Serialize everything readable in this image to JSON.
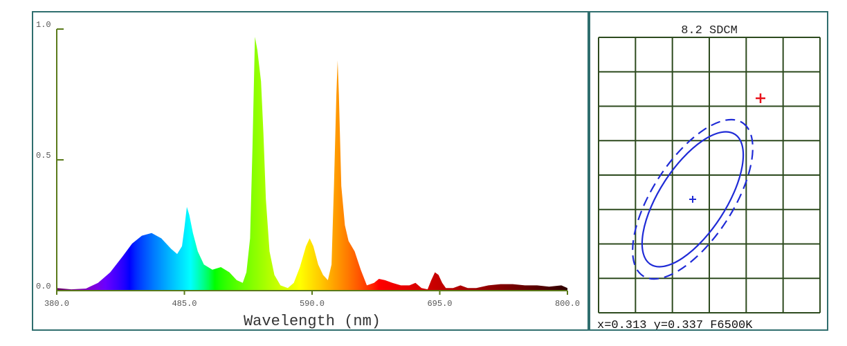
{
  "chart_data": [
    {
      "type": "area",
      "xlabel": "Wavelength (nm)",
      "ylabel": "",
      "xlim": [
        380,
        800
      ],
      "ylim": [
        0,
        1
      ],
      "x_ticks": [
        "380.0",
        "485.0",
        "590.0",
        "695.0",
        "800.0"
      ],
      "y_ticks": [
        "0.0",
        "0.5",
        "1.0"
      ],
      "colored_by_wavelength": true,
      "points": [
        [
          380,
          0.01
        ],
        [
          392,
          0.005
        ],
        [
          404,
          0.008
        ],
        [
          414,
          0.03
        ],
        [
          424,
          0.07
        ],
        [
          434,
          0.13
        ],
        [
          442,
          0.18
        ],
        [
          450,
          0.21
        ],
        [
          458,
          0.22
        ],
        [
          466,
          0.2
        ],
        [
          474,
          0.16
        ],
        [
          479,
          0.14
        ],
        [
          483,
          0.17
        ],
        [
          485,
          0.24
        ],
        [
          487,
          0.32
        ],
        [
          489,
          0.29
        ],
        [
          492,
          0.22
        ],
        [
          496,
          0.15
        ],
        [
          501,
          0.1
        ],
        [
          508,
          0.08
        ],
        [
          515,
          0.09
        ],
        [
          522,
          0.07
        ],
        [
          528,
          0.04
        ],
        [
          533,
          0.03
        ],
        [
          536,
          0.07
        ],
        [
          539,
          0.2
        ],
        [
          541,
          0.55
        ],
        [
          543,
          0.97
        ],
        [
          545,
          0.92
        ],
        [
          548,
          0.8
        ],
        [
          550,
          0.6
        ],
        [
          552,
          0.35
        ],
        [
          555,
          0.15
        ],
        [
          559,
          0.06
        ],
        [
          564,
          0.02
        ],
        [
          570,
          0.01
        ],
        [
          575,
          0.03
        ],
        [
          580,
          0.09
        ],
        [
          585,
          0.17
        ],
        [
          588,
          0.2
        ],
        [
          591,
          0.17
        ],
        [
          595,
          0.1
        ],
        [
          599,
          0.06
        ],
        [
          603,
          0.04
        ],
        [
          606,
          0.1
        ],
        [
          608,
          0.4
        ],
        [
          610,
          0.75
        ],
        [
          611,
          0.88
        ],
        [
          612,
          0.75
        ],
        [
          614,
          0.4
        ],
        [
          617,
          0.25
        ],
        [
          620,
          0.19
        ],
        [
          625,
          0.15
        ],
        [
          630,
          0.08
        ],
        [
          635,
          0.02
        ],
        [
          641,
          0.03
        ],
        [
          645,
          0.045
        ],
        [
          650,
          0.04
        ],
        [
          656,
          0.03
        ],
        [
          663,
          0.02
        ],
        [
          670,
          0.02
        ],
        [
          675,
          0.03
        ],
        [
          680,
          0.01
        ],
        [
          685,
          0.005
        ],
        [
          688,
          0.04
        ],
        [
          691,
          0.07
        ],
        [
          694,
          0.06
        ],
        [
          697,
          0.03
        ],
        [
          700,
          0.01
        ],
        [
          706,
          0.01
        ],
        [
          712,
          0.02
        ],
        [
          718,
          0.01
        ],
        [
          725,
          0.01
        ],
        [
          735,
          0.02
        ],
        [
          745,
          0.025
        ],
        [
          755,
          0.025
        ],
        [
          765,
          0.02
        ],
        [
          775,
          0.02
        ],
        [
          785,
          0.015
        ],
        [
          795,
          0.02
        ],
        [
          800,
          0.01
        ]
      ]
    },
    {
      "type": "scatter",
      "title": "8.2 SDCM",
      "footer": "x=0.313 y=0.337 F6500K",
      "measured_point": {
        "x": 0.313,
        "y": 0.337,
        "color": "#e8121b"
      },
      "reference_point_color": "#1f2bd6",
      "ellipse_color": "#1f2bd6",
      "grid": true,
      "grid_color": "#2d4a1e"
    }
  ]
}
